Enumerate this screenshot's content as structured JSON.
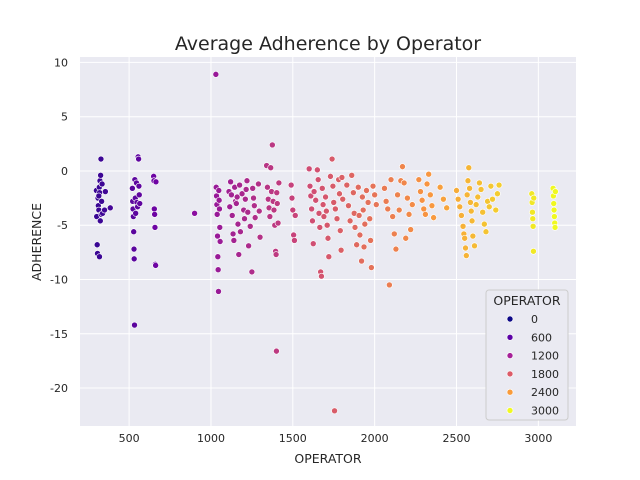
{
  "chart_data": {
    "type": "scatter",
    "title": "Average Adherence by Operator",
    "xlabel": "OPERATOR",
    "ylabel": "ADHERENCE",
    "xlim": [
      200,
      3230
    ],
    "ylim": [
      -23.5,
      10.5
    ],
    "x_ticks": [
      500,
      1000,
      1500,
      2000,
      2500,
      3000
    ],
    "y_ticks": [
      10,
      5,
      0,
      -5,
      -10,
      -15,
      -20
    ],
    "grid": true,
    "color_scale": "plasma",
    "color_range": [
      0,
      3100
    ],
    "legend": {
      "title": "OPERATOR",
      "placement": "lower-right",
      "entries": [
        {
          "label": "0",
          "color": "#0d0887"
        },
        {
          "label": "600",
          "color": "#5c01a6"
        },
        {
          "label": "1200",
          "color": "#a62098"
        },
        {
          "label": "1800",
          "color": "#dc5b68"
        },
        {
          "label": "2400",
          "color": "#f99b3a"
        },
        {
          "label": "3000",
          "color": "#f0f921"
        }
      ]
    },
    "points": [
      [
        300,
        -1.8
      ],
      [
        302,
        -4.2
      ],
      [
        305,
        -6.8
      ],
      [
        307,
        -7.6
      ],
      [
        310,
        -2.5
      ],
      [
        312,
        -3.2
      ],
      [
        315,
        -3.6
      ],
      [
        318,
        -1.5
      ],
      [
        320,
        -2.0
      ],
      [
        322,
        -0.9
      ],
      [
        324,
        -4.6
      ],
      [
        326,
        -0.4
      ],
      [
        328,
        1.1
      ],
      [
        330,
        -4.0
      ],
      [
        332,
        -2.8
      ],
      [
        335,
        -1.2
      ],
      [
        338,
        -3.9
      ],
      [
        350,
        -3.6
      ],
      [
        355,
        -1.9
      ],
      [
        385,
        -3.4
      ],
      [
        315,
        -2.3
      ],
      [
        319,
        -7.9
      ],
      [
        520,
        -1.6
      ],
      [
        522,
        -2.8
      ],
      [
        524,
        -3.5
      ],
      [
        526,
        -4.2
      ],
      [
        528,
        -5.6
      ],
      [
        530,
        -7.2
      ],
      [
        531,
        -8.1
      ],
      [
        533,
        -14.2
      ],
      [
        535,
        -0.8
      ],
      [
        538,
        -2.5
      ],
      [
        540,
        -3.9
      ],
      [
        545,
        -1.1
      ],
      [
        548,
        -2.9
      ],
      [
        552,
        -3.3
      ],
      [
        555,
        1.3
      ],
      [
        558,
        1.1
      ],
      [
        560,
        -1.4
      ],
      [
        562,
        -2.2
      ],
      [
        565,
        -3.0
      ],
      [
        650,
        -0.5
      ],
      [
        652,
        -0.9
      ],
      [
        654,
        -3.5
      ],
      [
        656,
        -4.0
      ],
      [
        658,
        -5.2
      ],
      [
        660,
        -8.6
      ],
      [
        662,
        -8.7
      ],
      [
        664,
        -1.0
      ],
      [
        900,
        -3.9
      ],
      [
        1030,
        8.9
      ],
      [
        1032,
        -1.5
      ],
      [
        1034,
        -2.3
      ],
      [
        1036,
        -3.1
      ],
      [
        1038,
        -4.0
      ],
      [
        1040,
        -6.0
      ],
      [
        1042,
        -7.9
      ],
      [
        1044,
        -9.1
      ],
      [
        1046,
        -11.1
      ],
      [
        1048,
        -1.8
      ],
      [
        1050,
        -2.7
      ],
      [
        1052,
        -3.5
      ],
      [
        1054,
        -5.2
      ],
      [
        1056,
        -6.5
      ],
      [
        1110,
        -1.9
      ],
      [
        1115,
        -3.3
      ],
      [
        1120,
        -1.0
      ],
      [
        1125,
        -2.2
      ],
      [
        1130,
        -4.1
      ],
      [
        1135,
        -5.8
      ],
      [
        1140,
        -6.4
      ],
      [
        1145,
        -1.5
      ],
      [
        1150,
        -2.8
      ],
      [
        1155,
        -3.0
      ],
      [
        1160,
        -2.4
      ],
      [
        1165,
        -4.9
      ],
      [
        1170,
        -7.7
      ],
      [
        1175,
        -1.3
      ],
      [
        1180,
        -5.6
      ],
      [
        1190,
        -2.1
      ],
      [
        1200,
        -3.6
      ],
      [
        1205,
        -4.4
      ],
      [
        1210,
        -2.6
      ],
      [
        1215,
        -1.7
      ],
      [
        1220,
        -0.9
      ],
      [
        1225,
        -3.8
      ],
      [
        1230,
        -6.9
      ],
      [
        1240,
        -5.1
      ],
      [
        1250,
        -9.3
      ],
      [
        1255,
        -1.6
      ],
      [
        1260,
        -2.5
      ],
      [
        1265,
        -3.2
      ],
      [
        1270,
        -4.3
      ],
      [
        1290,
        -1.2
      ],
      [
        1295,
        -3.7
      ],
      [
        1300,
        -6.1
      ],
      [
        1340,
        0.5
      ],
      [
        1345,
        -1.5
      ],
      [
        1350,
        -2.6
      ],
      [
        1355,
        -3.4
      ],
      [
        1360,
        -4.2
      ],
      [
        1365,
        0.3
      ],
      [
        1370,
        -1.9
      ],
      [
        1375,
        2.4
      ],
      [
        1380,
        -2.8
      ],
      [
        1385,
        -3.6
      ],
      [
        1390,
        -5.0
      ],
      [
        1395,
        -7.4
      ],
      [
        1398,
        -7.7
      ],
      [
        1400,
        -16.6
      ],
      [
        1402,
        -2.0
      ],
      [
        1405,
        -3.0
      ],
      [
        1410,
        -4.8
      ],
      [
        1415,
        -1.1
      ],
      [
        1490,
        -1.3
      ],
      [
        1495,
        -2.5
      ],
      [
        1500,
        -3.6
      ],
      [
        1505,
        -5.9
      ],
      [
        1510,
        -6.4
      ],
      [
        1515,
        -4.1
      ],
      [
        1600,
        0.2
      ],
      [
        1605,
        -1.4
      ],
      [
        1610,
        -2.3
      ],
      [
        1615,
        -3.5
      ],
      [
        1620,
        -4.6
      ],
      [
        1625,
        -6.7
      ],
      [
        1630,
        -1.9
      ],
      [
        1640,
        -2.7
      ],
      [
        1650,
        0.1
      ],
      [
        1655,
        -0.8
      ],
      [
        1660,
        -3.9
      ],
      [
        1665,
        -5.2
      ],
      [
        1670,
        -9.3
      ],
      [
        1675,
        -9.7
      ],
      [
        1680,
        -1.6
      ],
      [
        1685,
        -3.1
      ],
      [
        1690,
        -4.2
      ],
      [
        1700,
        -2.4
      ],
      [
        1705,
        -3.7
      ],
      [
        1710,
        -5.0
      ],
      [
        1715,
        -6.2
      ],
      [
        1720,
        -7.9
      ],
      [
        1730,
        -0.5
      ],
      [
        1740,
        1.1
      ],
      [
        1745,
        -1.4
      ],
      [
        1750,
        -2.9
      ],
      [
        1755,
        -22.1
      ],
      [
        1760,
        -3.5
      ],
      [
        1770,
        -4.4
      ],
      [
        1780,
        -0.8
      ],
      [
        1785,
        -2.1
      ],
      [
        1790,
        -5.5
      ],
      [
        1795,
        -7.3
      ],
      [
        1800,
        -0.6
      ],
      [
        1805,
        -2.6
      ],
      [
        1830,
        -1.3
      ],
      [
        1840,
        -3.2
      ],
      [
        1850,
        -4.6
      ],
      [
        1860,
        -0.4
      ],
      [
        1870,
        -2.0
      ],
      [
        1875,
        -3.9
      ],
      [
        1880,
        -5.2
      ],
      [
        1890,
        -6.8
      ],
      [
        1900,
        -1.5
      ],
      [
        1905,
        -4.1
      ],
      [
        1910,
        -5.9
      ],
      [
        1920,
        -8.3
      ],
      [
        1925,
        -2.4
      ],
      [
        1930,
        -3.6
      ],
      [
        1935,
        -7.0
      ],
      [
        1940,
        -4.9
      ],
      [
        1950,
        -1.8
      ],
      [
        1960,
        -2.9
      ],
      [
        1970,
        -4.4
      ],
      [
        1975,
        -6.4
      ],
      [
        1980,
        -8.9
      ],
      [
        1990,
        -1.4
      ],
      [
        2000,
        -2.2
      ],
      [
        2010,
        -3.1
      ],
      [
        2060,
        -1.6
      ],
      [
        2070,
        -2.8
      ],
      [
        2080,
        -3.5
      ],
      [
        2090,
        -10.5
      ],
      [
        2100,
        -0.8
      ],
      [
        2110,
        -4.2
      ],
      [
        2120,
        -5.8
      ],
      [
        2130,
        -7.2
      ],
      [
        2140,
        -2.2
      ],
      [
        2150,
        -3.6
      ],
      [
        2160,
        -0.9
      ],
      [
        2170,
        0.4
      ],
      [
        2180,
        -1.1
      ],
      [
        2190,
        -6.2
      ],
      [
        2200,
        -2.5
      ],
      [
        2210,
        -4.0
      ],
      [
        2220,
        -5.4
      ],
      [
        2230,
        -3.1
      ],
      [
        2270,
        -0.8
      ],
      [
        2280,
        -1.9
      ],
      [
        2290,
        -2.7
      ],
      [
        2300,
        -3.5
      ],
      [
        2310,
        -4.0
      ],
      [
        2320,
        -1.2
      ],
      [
        2330,
        -0.3
      ],
      [
        2340,
        -2.2
      ],
      [
        2350,
        -3.2
      ],
      [
        2360,
        -4.3
      ],
      [
        2400,
        -1.5
      ],
      [
        2420,
        -2.6
      ],
      [
        2440,
        -3.4
      ],
      [
        2500,
        -1.8
      ],
      [
        2510,
        -2.6
      ],
      [
        2520,
        -3.3
      ],
      [
        2530,
        -4.1
      ],
      [
        2540,
        -5.1
      ],
      [
        2545,
        -5.8
      ],
      [
        2550,
        -6.2
      ],
      [
        2555,
        -7.1
      ],
      [
        2560,
        -7.8
      ],
      [
        2565,
        -2.2
      ],
      [
        2570,
        -0.9
      ],
      [
        2575,
        0.3
      ],
      [
        2580,
        -1.6
      ],
      [
        2585,
        -2.9
      ],
      [
        2590,
        -3.7
      ],
      [
        2595,
        -4.6
      ],
      [
        2600,
        -6.0
      ],
      [
        2610,
        -6.9
      ],
      [
        2620,
        -3.1
      ],
      [
        2630,
        -2.4
      ],
      [
        2640,
        -1.1
      ],
      [
        2650,
        -1.7
      ],
      [
        2660,
        -3.8
      ],
      [
        2670,
        -4.9
      ],
      [
        2680,
        -5.6
      ],
      [
        2690,
        -2.8
      ],
      [
        2700,
        -3.3
      ],
      [
        2710,
        -1.4
      ],
      [
        2720,
        -2.6
      ],
      [
        2740,
        -3.6
      ],
      [
        2750,
        -2.1
      ],
      [
        2760,
        -1.3
      ],
      [
        2960,
        -2.1
      ],
      [
        2962,
        -2.9
      ],
      [
        2964,
        -3.8
      ],
      [
        2966,
        -4.4
      ],
      [
        2968,
        -5.1
      ],
      [
        2970,
        -7.4
      ],
      [
        2972,
        -2.5
      ],
      [
        3090,
        -1.6
      ],
      [
        3092,
        -2.3
      ],
      [
        3094,
        -3.0
      ],
      [
        3096,
        -3.6
      ],
      [
        3098,
        -4.2
      ],
      [
        3100,
        -4.8
      ],
      [
        3102,
        -5.2
      ],
      [
        3104,
        -1.9
      ]
    ]
  }
}
